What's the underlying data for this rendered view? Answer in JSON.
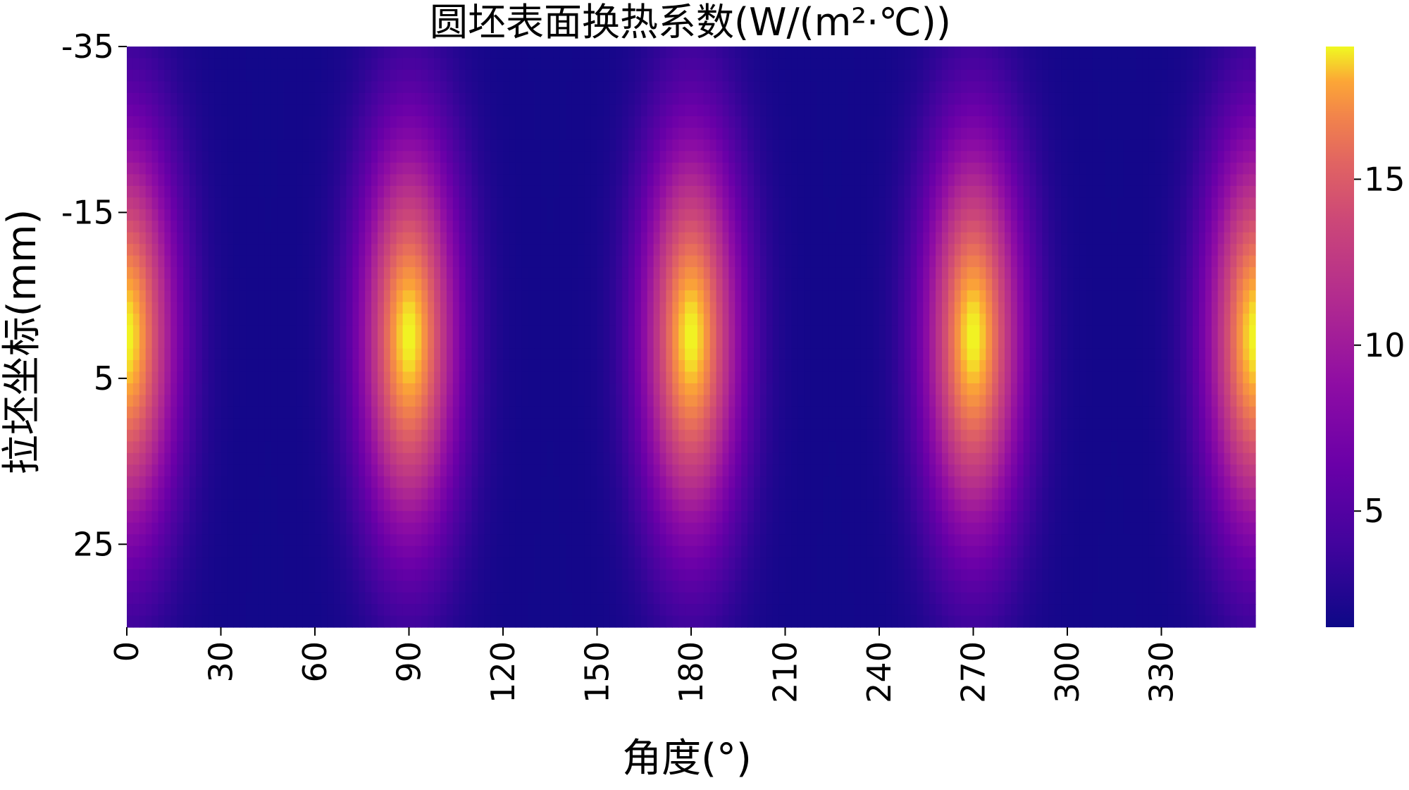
{
  "chart_data": {
    "type": "heatmap",
    "title": "圆坯表面换热系数(W/(m²·℃))",
    "xlabel": "角度(°)",
    "ylabel": "拉坯坐标(mm)",
    "x_range": [
      0,
      360
    ],
    "y_range": [
      -35,
      35
    ],
    "x_ticks": [
      "0",
      "30",
      "60",
      "90",
      "120",
      "150",
      "180",
      "210",
      "240",
      "270",
      "300",
      "330"
    ],
    "y_ticks": [
      "-35",
      "-15",
      "5",
      "25"
    ],
    "colorbar_ticks": [
      "5",
      "10",
      "15"
    ],
    "colorbar_range": [
      1.5,
      19
    ],
    "colormap": "plasma",
    "hotspots": [
      {
        "angle": 0,
        "y_center": 0,
        "peak": 19
      },
      {
        "angle": 90,
        "y_center": 0,
        "peak": 19
      },
      {
        "angle": 180,
        "y_center": 0,
        "peak": 19
      },
      {
        "angle": 270,
        "y_center": 0,
        "peak": 19
      },
      {
        "angle": 360,
        "y_center": 0,
        "peak": 19
      }
    ],
    "base_value": 1.8
  }
}
